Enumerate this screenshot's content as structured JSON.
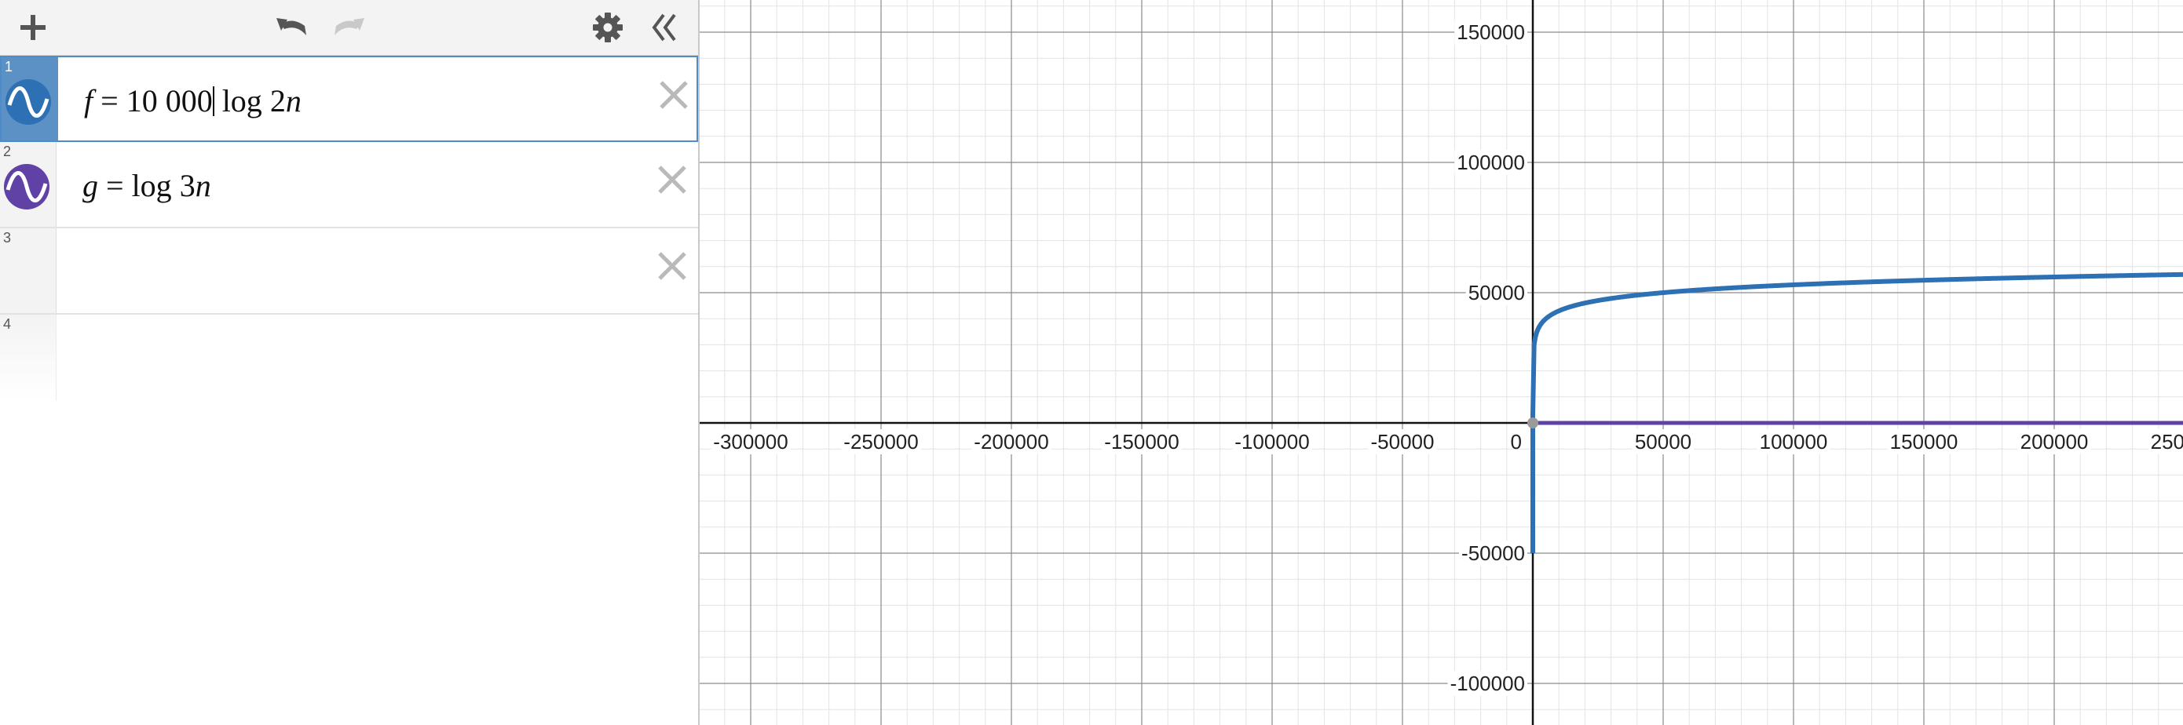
{
  "toolbar": {
    "add_icon": "plus-icon",
    "undo_icon": "undo-icon",
    "redo_icon": "redo-icon",
    "settings_icon": "gear-icon",
    "collapse_icon": "double-chevron-left-icon"
  },
  "expressions": [
    {
      "number": "1",
      "lhs": "f",
      "eq": " = ",
      "coef": "10 000",
      "func": " log ",
      "arg": "2",
      "var": "n",
      "color": "#2d70b3",
      "active": true
    },
    {
      "number": "2",
      "lhs": "g",
      "eq": " = ",
      "coef": "",
      "func": "log ",
      "arg": "3",
      "var": "n",
      "color": "#6042a6",
      "active": false
    },
    {
      "number": "3"
    },
    {
      "number": "4"
    }
  ],
  "graph": {
    "x_ticks": [
      "-300000",
      "-250000",
      "-200000",
      "-150000",
      "-100000",
      "-50000",
      "0",
      "50000",
      "100000",
      "150000",
      "200000",
      "250000"
    ],
    "y_ticks": [
      "150000",
      "100000",
      "50000",
      "-50000",
      "-100000"
    ],
    "colors": {
      "f": "#2d70b3",
      "g": "#6042a6"
    }
  },
  "chart_data": {
    "type": "line",
    "title": "",
    "xlabel": "",
    "ylabel": "",
    "xlim": [
      -320000,
      252000
    ],
    "ylim": [
      -116000,
      165000
    ],
    "grid": true,
    "series": [
      {
        "name": "f",
        "expression": "f = 10000 log 2n",
        "color": "#2d70b3"
      },
      {
        "name": "g",
        "expression": "g = log 3n",
        "color": "#6042a6"
      }
    ]
  }
}
